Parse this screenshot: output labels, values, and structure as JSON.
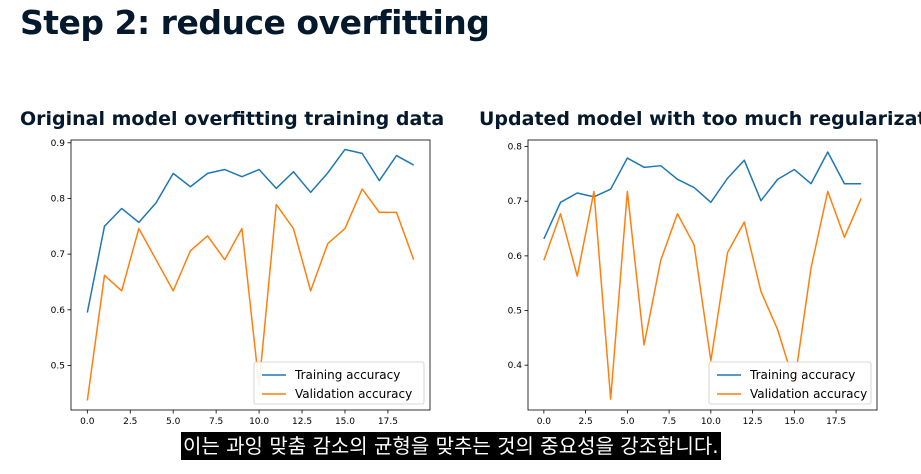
{
  "slide": {
    "title": "Step 2: reduce overfitting",
    "caption": "이는 과잉 맞춤 감소의 균형을 맞추는 것의 중요성을 강조합니다."
  },
  "chart_data": [
    {
      "type": "line",
      "title": "Original model overfitting training data",
      "xlim": [
        -0.95,
        19.95
      ],
      "ylim": [
        0.42,
        0.905
      ],
      "xticks": [
        "0.0",
        "2.5",
        "5.0",
        "7.5",
        "10.0",
        "12.5",
        "15.0",
        "17.5"
      ],
      "xtick_values": [
        0,
        2.5,
        5,
        7.5,
        10,
        12.5,
        15,
        17.5
      ],
      "yticks": [
        "0.5",
        "0.6",
        "0.7",
        "0.8",
        "0.9"
      ],
      "ytick_values": [
        0.5,
        0.6,
        0.7,
        0.8,
        0.9
      ],
      "x": [
        0,
        1,
        2,
        3,
        4,
        5,
        6,
        7,
        8,
        9,
        10,
        11,
        12,
        13,
        14,
        15,
        16,
        17,
        18,
        19
      ],
      "series": [
        {
          "name": "Training accuracy",
          "color": "#1f77b4",
          "values": [
            0.595,
            0.75,
            0.782,
            0.757,
            0.792,
            0.845,
            0.821,
            0.845,
            0.852,
            0.839,
            0.852,
            0.818,
            0.848,
            0.811,
            0.846,
            0.888,
            0.881,
            0.832,
            0.877,
            0.86
          ]
        },
        {
          "name": "Validation accuracy",
          "color": "#ff7f0e",
          "values": [
            0.437,
            0.662,
            0.634,
            0.746,
            0.69,
            0.634,
            0.706,
            0.733,
            0.69,
            0.746,
            0.465,
            0.789,
            0.746,
            0.634,
            0.719,
            0.746,
            0.817,
            0.775,
            0.775,
            0.69
          ]
        }
      ],
      "legend": "lower-right",
      "grid": false
    },
    {
      "type": "line",
      "title": "Updated model with too much regularization",
      "xlim": [
        -0.95,
        19.95
      ],
      "ylim": [
        0.318,
        0.812
      ],
      "xticks": [
        "0.0",
        "2.5",
        "5.0",
        "7.5",
        "10.0",
        "12.5",
        "15.0",
        "17.5"
      ],
      "xtick_values": [
        0,
        2.5,
        5,
        7.5,
        10,
        12.5,
        15,
        17.5
      ],
      "yticks": [
        "0.4",
        "0.5",
        "0.6",
        "0.7",
        "0.8"
      ],
      "ytick_values": [
        0.4,
        0.5,
        0.6,
        0.7,
        0.8
      ],
      "x": [
        0,
        1,
        2,
        3,
        4,
        5,
        6,
        7,
        8,
        9,
        10,
        11,
        12,
        13,
        14,
        15,
        16,
        17,
        18,
        19
      ],
      "series": [
        {
          "name": "Training accuracy",
          "color": "#1f77b4",
          "values": [
            0.631,
            0.698,
            0.715,
            0.708,
            0.722,
            0.779,
            0.762,
            0.765,
            0.74,
            0.725,
            0.698,
            0.742,
            0.775,
            0.701,
            0.74,
            0.758,
            0.732,
            0.79,
            0.732,
            0.732
          ]
        },
        {
          "name": "Validation accuracy",
          "color": "#ff7f0e",
          "values": [
            0.592,
            0.677,
            0.563,
            0.718,
            0.338,
            0.718,
            0.437,
            0.592,
            0.677,
            0.62,
            0.408,
            0.606,
            0.662,
            0.535,
            0.465,
            0.366,
            0.578,
            0.718,
            0.634,
            0.705
          ]
        }
      ],
      "legend": "lower-right",
      "grid": false
    }
  ]
}
